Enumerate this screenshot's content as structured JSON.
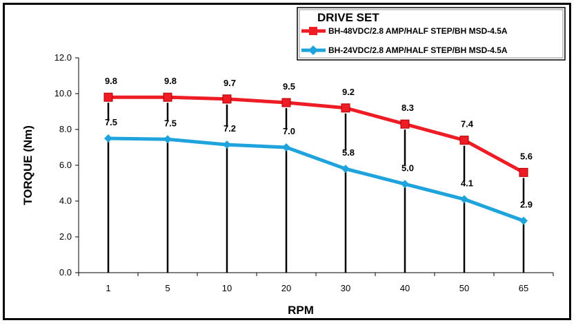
{
  "chart_data": {
    "type": "line",
    "categories": [
      "1",
      "5",
      "10",
      "20",
      "30",
      "40",
      "50",
      "65"
    ],
    "xlabel": "RPM",
    "ylabel": "TORQUE (Nm)",
    "ylim": [
      0,
      12
    ],
    "yticks": [
      "0.0",
      "2.0",
      "4.0",
      "6.0",
      "8.0",
      "10.0",
      "12.0"
    ],
    "legend_title": "DRIVE SET",
    "series": [
      {
        "name": "BH-48VDC/2.8 AMP/HALF STEP/BH MSD-4.5A",
        "values": [
          9.8,
          9.8,
          9.7,
          9.5,
          9.2,
          8.3,
          7.4,
          5.6
        ],
        "labels": [
          "9.8",
          "9.8",
          "9.7",
          "9.5",
          "9.2",
          "8.3",
          "7.4",
          "5.6"
        ],
        "color": "#ee1c25",
        "marker": "square"
      },
      {
        "name": "BH-24VDC/2.8 AMP/HALF STEP/BH MSD-4.5A",
        "values": [
          7.5,
          7.45,
          7.15,
          7.0,
          5.8,
          4.95,
          4.1,
          2.9
        ],
        "labels": [
          "7.5",
          "7.5",
          "7.2",
          "7.0",
          "5.8",
          "5.0",
          "4.1",
          "2.9"
        ],
        "color": "#1fa3dc",
        "marker": "diamond"
      }
    ]
  }
}
